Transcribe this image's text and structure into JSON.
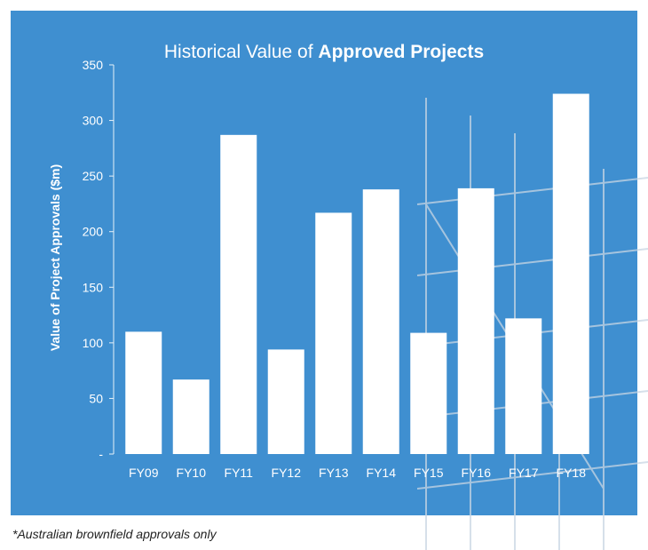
{
  "colors": {
    "panel_background": "#3f8fd0",
    "bar_fill": "#ffffff",
    "text": "#ffffff",
    "footnote_text": "#222222"
  },
  "footnote": "*Australian brownfield approvals only",
  "chart_data": {
    "type": "bar",
    "title_prefix": "Historical Value of ",
    "title_emphasis": "Approved Projects",
    "xlabel": "",
    "ylabel": "Value of Project Approvals ($m)",
    "categories": [
      "FY09",
      "FY10",
      "FY11",
      "FY12",
      "FY13",
      "FY14",
      "FY15",
      "FY16",
      "FY17",
      "FY18"
    ],
    "values": [
      110,
      67,
      287,
      94,
      217,
      238,
      109,
      239,
      122,
      324
    ],
    "ylim": [
      0,
      350
    ],
    "yticks": [
      {
        "value": 0,
        "label": "-"
      },
      {
        "value": 50,
        "label": "50"
      },
      {
        "value": 100,
        "label": "100"
      },
      {
        "value": 150,
        "label": "150"
      },
      {
        "value": 200,
        "label": "200"
      },
      {
        "value": 250,
        "label": "250"
      },
      {
        "value": 300,
        "label": "300"
      },
      {
        "value": 350,
        "label": "350"
      }
    ],
    "grid": false,
    "legend": "none"
  }
}
